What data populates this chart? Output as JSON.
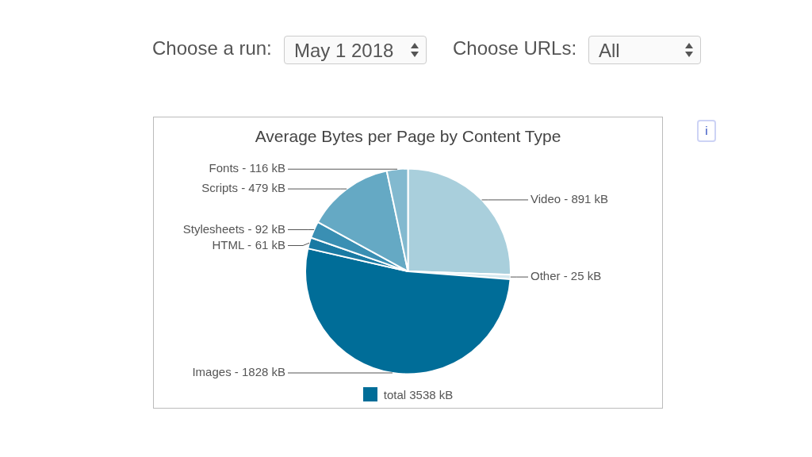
{
  "chart_data": {
    "type": "pie",
    "title": "Average Bytes per Page by Content Type",
    "categories": [
      "Video -",
      "Other -",
      "Images -",
      "HTML -",
      "Stylesheets -",
      "Scripts -",
      "Fonts -"
    ],
    "values": [
      891,
      25,
      1828,
      61,
      92,
      479,
      116
    ],
    "value_labels": [
      "891 kB",
      "25 kB",
      "1828 kB",
      "61 kB",
      "92 kB",
      "479 kB",
      "116 kB"
    ],
    "colors": [
      "#a9cfdc",
      "#d4e8ef",
      "#006d98",
      "#1a7aa3",
      "#3a8fb3",
      "#65a9c4",
      "#82b9cf"
    ],
    "annotations": [
      "Choose a run:",
      "May 1 2018",
      "Choose URLs:",
      "All",
      "i",
      "total 3538 kB"
    ]
  }
}
